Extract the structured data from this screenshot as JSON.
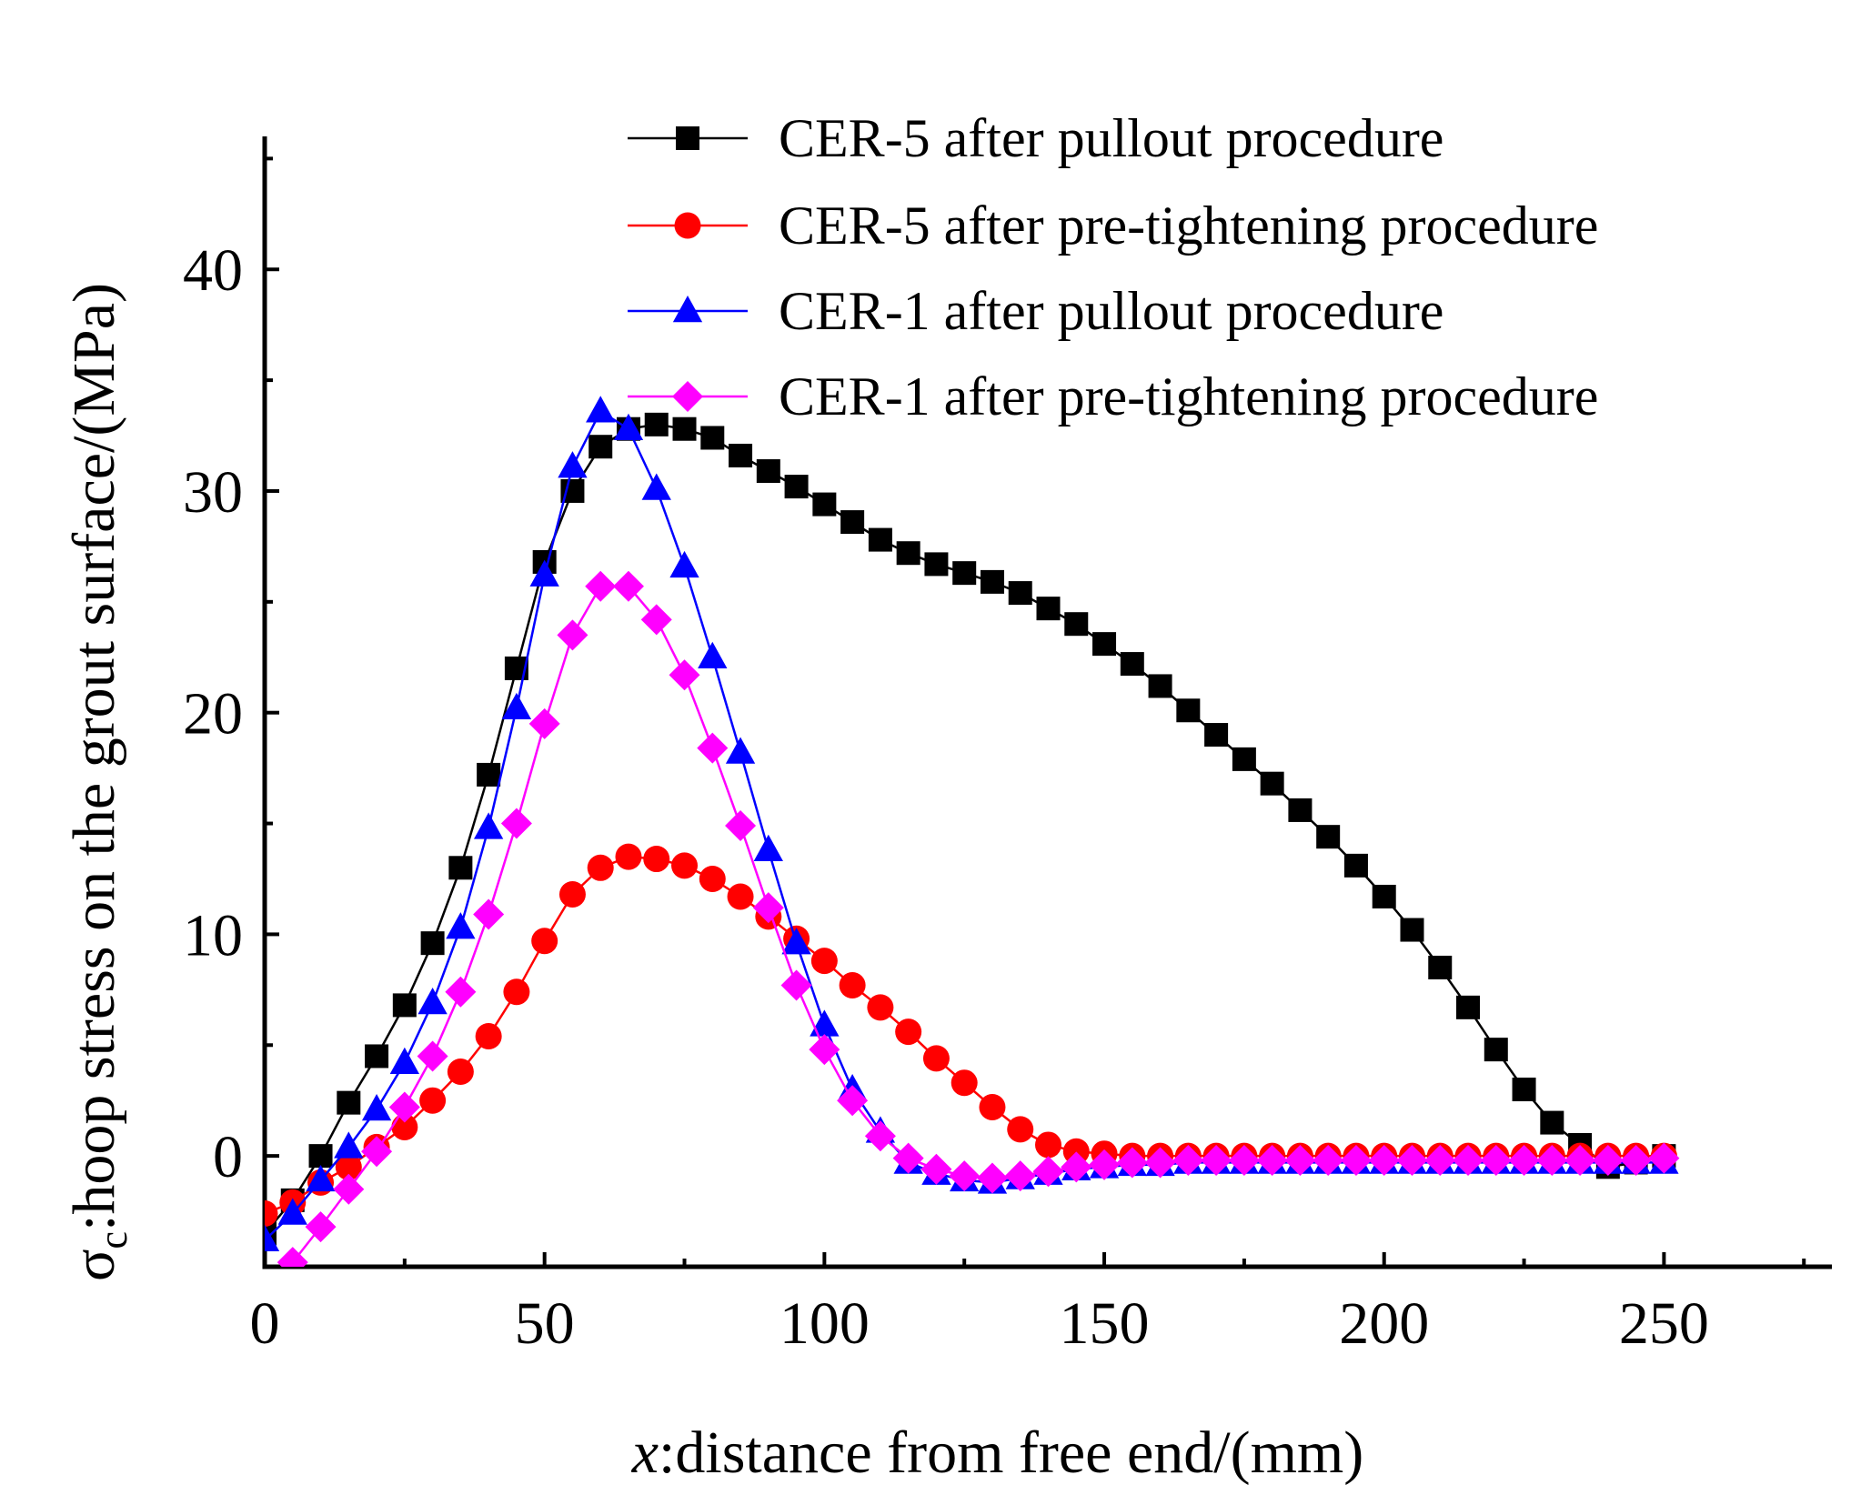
{
  "chart_data": {
    "type": "line",
    "title": "",
    "xlabel": {
      "var": "x",
      "text": ":distance from free end/(mm)"
    },
    "ylabel": {
      "var": "σ",
      "sub": "c",
      "text": ":hoop stress on the grout surface/(MPa)"
    },
    "xlim": [
      0,
      280
    ],
    "ylim": [
      -5,
      46
    ],
    "xticks": [
      0,
      50,
      100,
      150,
      200,
      250
    ],
    "yticks": [
      0,
      10,
      20,
      30,
      40
    ],
    "legend_position": "top-right",
    "series": [
      {
        "name": "CER-5 after pullout procedure",
        "color": "#000000",
        "marker": "square",
        "x": [
          0,
          5,
          10,
          15,
          20,
          25,
          30,
          35,
          40,
          45,
          50,
          55,
          60,
          65,
          70,
          75,
          80,
          85,
          90,
          95,
          100,
          105,
          110,
          115,
          120,
          125,
          130,
          135,
          140,
          145,
          150,
          155,
          160,
          165,
          170,
          175,
          180,
          185,
          190,
          195,
          200,
          205,
          210,
          215,
          220,
          225,
          230,
          235,
          240,
          245,
          250
        ],
        "y": [
          -3.5,
          -2.0,
          0.0,
          2.4,
          4.5,
          6.8,
          9.6,
          13.0,
          17.2,
          22.0,
          26.8,
          30.0,
          32.0,
          32.8,
          33.0,
          32.8,
          32.4,
          31.6,
          30.9,
          30.2,
          29.4,
          28.6,
          27.8,
          27.2,
          26.7,
          26.3,
          25.9,
          25.4,
          24.7,
          24.0,
          23.1,
          22.2,
          21.2,
          20.1,
          19.0,
          17.9,
          16.8,
          15.6,
          14.4,
          13.1,
          11.7,
          10.2,
          8.5,
          6.7,
          4.8,
          3.0,
          1.5,
          0.5,
          -0.5,
          -0.3,
          0.0
        ]
      },
      {
        "name": "CER-5 after pre-tightening procedure",
        "color": "#ff0000",
        "marker": "circle",
        "x": [
          0,
          5,
          10,
          15,
          20,
          25,
          30,
          35,
          40,
          45,
          50,
          55,
          60,
          65,
          70,
          75,
          80,
          85,
          90,
          95,
          100,
          105,
          110,
          115,
          120,
          125,
          130,
          135,
          140,
          145,
          150,
          155,
          160,
          165,
          170,
          175,
          180,
          185,
          190,
          195,
          200,
          205,
          210,
          215,
          220,
          225,
          230,
          235,
          240,
          245,
          250
        ],
        "y": [
          -2.6,
          -2.1,
          -1.2,
          -0.5,
          0.4,
          1.3,
          2.5,
          3.8,
          5.4,
          7.4,
          9.7,
          11.8,
          13.0,
          13.5,
          13.4,
          13.1,
          12.5,
          11.7,
          10.8,
          9.8,
          8.8,
          7.7,
          6.7,
          5.6,
          4.4,
          3.3,
          2.2,
          1.2,
          0.5,
          0.2,
          0.1,
          0.0,
          0.0,
          0.0,
          0.0,
          0.0,
          0.0,
          0.0,
          0.0,
          0.0,
          0.0,
          0.0,
          0.0,
          0.0,
          0.0,
          0.0,
          0.0,
          0.0,
          0.0,
          0.0,
          0.0
        ]
      },
      {
        "name": "CER-1 after pullout procedure",
        "color": "#0000ff",
        "marker": "triangle",
        "x": [
          0,
          5,
          10,
          15,
          20,
          25,
          30,
          35,
          40,
          45,
          50,
          55,
          60,
          65,
          70,
          75,
          80,
          85,
          90,
          95,
          100,
          105,
          110,
          115,
          120,
          125,
          130,
          135,
          140,
          145,
          150,
          155,
          160,
          165,
          170,
          175,
          180,
          185,
          190,
          195,
          200,
          205,
          210,
          215,
          220,
          225,
          230,
          235,
          240,
          245,
          250
        ],
        "y": [
          -3.8,
          -2.6,
          -1.1,
          0.4,
          2.1,
          4.2,
          6.9,
          10.3,
          14.8,
          20.2,
          26.2,
          31.1,
          33.6,
          32.8,
          30.1,
          26.6,
          22.5,
          18.2,
          13.8,
          9.6,
          5.9,
          3.0,
          1.1,
          -0.3,
          -0.8,
          -1.1,
          -1.2,
          -1.0,
          -0.8,
          -0.6,
          -0.5,
          -0.4,
          -0.4,
          -0.3,
          -0.3,
          -0.3,
          -0.3,
          -0.3,
          -0.3,
          -0.3,
          -0.3,
          -0.3,
          -0.3,
          -0.3,
          -0.3,
          -0.3,
          -0.3,
          -0.3,
          -0.3,
          -0.3,
          -0.3
        ]
      },
      {
        "name": "CER-1 after pre-tightening procedure",
        "color": "#ff00ff",
        "marker": "diamond",
        "x": [
          5,
          10,
          15,
          20,
          25,
          30,
          35,
          40,
          45,
          50,
          55,
          60,
          65,
          70,
          75,
          80,
          85,
          90,
          95,
          100,
          105,
          110,
          115,
          120,
          125,
          130,
          135,
          140,
          145,
          150,
          155,
          160,
          165,
          170,
          175,
          180,
          185,
          190,
          195,
          200,
          205,
          210,
          215,
          220,
          225,
          230,
          235,
          240,
          245,
          250
        ],
        "y": [
          -4.8,
          -3.2,
          -1.5,
          0.2,
          2.2,
          4.5,
          7.4,
          10.9,
          15.0,
          19.5,
          23.5,
          25.7,
          25.7,
          24.2,
          21.7,
          18.4,
          14.9,
          11.2,
          7.7,
          4.8,
          2.5,
          0.9,
          -0.1,
          -0.6,
          -0.9,
          -1.0,
          -0.9,
          -0.7,
          -0.5,
          -0.4,
          -0.3,
          -0.3,
          -0.2,
          -0.2,
          -0.2,
          -0.2,
          -0.2,
          -0.2,
          -0.2,
          -0.2,
          -0.2,
          -0.2,
          -0.2,
          -0.2,
          -0.2,
          -0.2,
          -0.2,
          -0.2,
          -0.2,
          -0.1
        ]
      }
    ]
  }
}
